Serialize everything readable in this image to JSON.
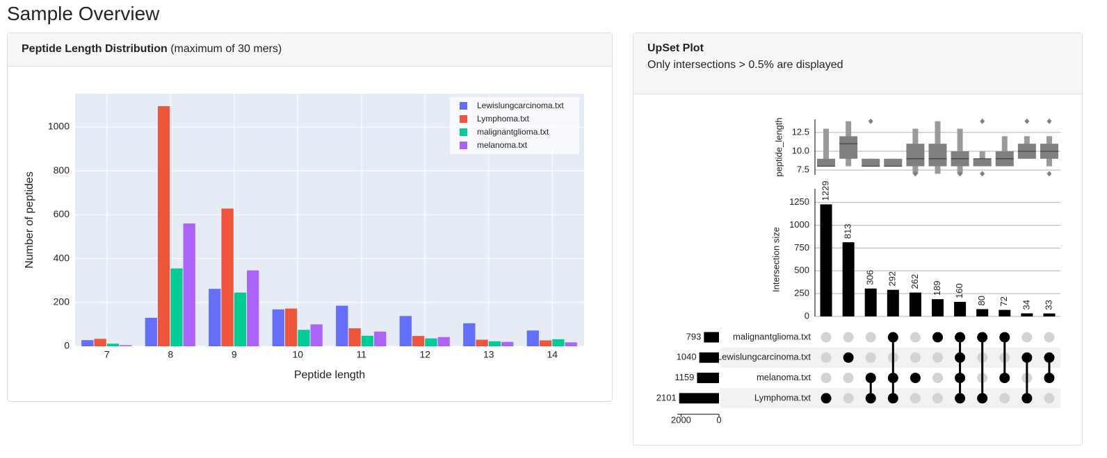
{
  "page_title": "Sample Overview",
  "cards": [
    {
      "title": "Peptide Length Distribution",
      "note": "(maximum of 30 mers)"
    },
    {
      "title": "UpSet Plot",
      "subtitle": "Only intersections > 0.5% are displayed"
    }
  ],
  "chart_data": [
    {
      "type": "bar",
      "xlabel": "Peptide length",
      "ylabel": "Number of peptides",
      "categories": [
        "7",
        "8",
        "9",
        "10",
        "11",
        "12",
        "13",
        "14"
      ],
      "series": [
        {
          "name": "Lewislungcarcinoma.txt",
          "color": "#636efa",
          "values": [
            28,
            130,
            262,
            168,
            185,
            138,
            105,
            72
          ]
        },
        {
          "name": "Lymphoma.txt",
          "color": "#ef553b",
          "values": [
            34,
            1095,
            628,
            172,
            82,
            47,
            30,
            27
          ]
        },
        {
          "name": "malignantglioma.txt",
          "color": "#00cc96",
          "values": [
            12,
            355,
            245,
            75,
            48,
            36,
            23,
            32
          ]
        },
        {
          "name": "melanoma.txt",
          "color": "#ab63fa",
          "values": [
            5,
            560,
            346,
            100,
            67,
            42,
            20,
            18
          ]
        }
      ],
      "ylim": [
        0,
        1152
      ],
      "yticks": [
        0,
        200,
        400,
        600,
        800,
        1000
      ],
      "grid": true,
      "legend": "top-right"
    },
    {
      "type": "upset",
      "ylabel": "Intersection size",
      "sets": [
        {
          "name": "malignantglioma.txt",
          "size": 793,
          "members": [
            false,
            false,
            false,
            true,
            false,
            true,
            true,
            true,
            true,
            false,
            false
          ]
        },
        {
          "name": "Lewislungcarcinoma.txt",
          "size": 1040,
          "members": [
            false,
            true,
            false,
            false,
            false,
            false,
            true,
            false,
            false,
            true,
            true
          ]
        },
        {
          "name": "melanoma.txt",
          "size": 1159,
          "members": [
            false,
            false,
            true,
            true,
            true,
            false,
            true,
            false,
            true,
            false,
            true
          ]
        },
        {
          "name": "Lymphoma.txt",
          "size": 2101,
          "members": [
            true,
            false,
            true,
            true,
            false,
            false,
            true,
            true,
            false,
            true,
            false
          ]
        }
      ],
      "set_size_xlim": [
        2200,
        0
      ],
      "set_size_xticks": [
        2000,
        0
      ],
      "values": [
        1229,
        813,
        306,
        292,
        262,
        189,
        160,
        80,
        72,
        34,
        33
      ],
      "ylim": [
        0,
        1400
      ],
      "yticks": [
        0,
        250,
        500,
        750,
        1000,
        1250
      ],
      "length_ylabel": "peptide_length",
      "length_ylim": [
        6.85,
        14.25
      ],
      "length_yticks": [
        7.5,
        {
          "value": 10,
          "label": "10.0"
        },
        12.5
      ],
      "length_stats": [
        {
          "lo": 8,
          "q1": 8,
          "median": 8,
          "q3": 9,
          "hi": 13,
          "outliers": []
        },
        {
          "lo": 8,
          "q1": 9,
          "median": 11,
          "q3": 12,
          "hi": 14,
          "outliers": []
        },
        {
          "lo": 8,
          "q1": 8,
          "median": 8,
          "q3": 9,
          "hi": 9,
          "outliers": [
            14
          ]
        },
        {
          "lo": 8,
          "q1": 8,
          "median": 8,
          "q3": 9,
          "hi": 9,
          "outliers": []
        },
        {
          "lo": 7,
          "q1": 8,
          "median": 9,
          "q3": 11,
          "hi": 13,
          "outliers": [
            7
          ]
        },
        {
          "lo": 7,
          "q1": 8,
          "median": 9,
          "q3": 11,
          "hi": 14,
          "outliers": []
        },
        {
          "lo": 7,
          "q1": 8,
          "median": 9,
          "q3": 10,
          "hi": 13,
          "outliers": [
            7
          ]
        },
        {
          "lo": 8,
          "q1": 8,
          "median": 9,
          "q3": 9,
          "hi": 10,
          "outliers": [
            14,
            7
          ]
        },
        {
          "lo": 8,
          "q1": 8,
          "median": 9,
          "q3": 10,
          "hi": 12,
          "outliers": []
        },
        {
          "lo": 9,
          "q1": 9,
          "median": 10,
          "q3": 11,
          "hi": 12,
          "outliers": [
            14
          ]
        },
        {
          "lo": 8,
          "q1": 9,
          "median": 10,
          "q3": 11,
          "hi": 12,
          "outliers": [
            14,
            7
          ]
        }
      ]
    }
  ]
}
